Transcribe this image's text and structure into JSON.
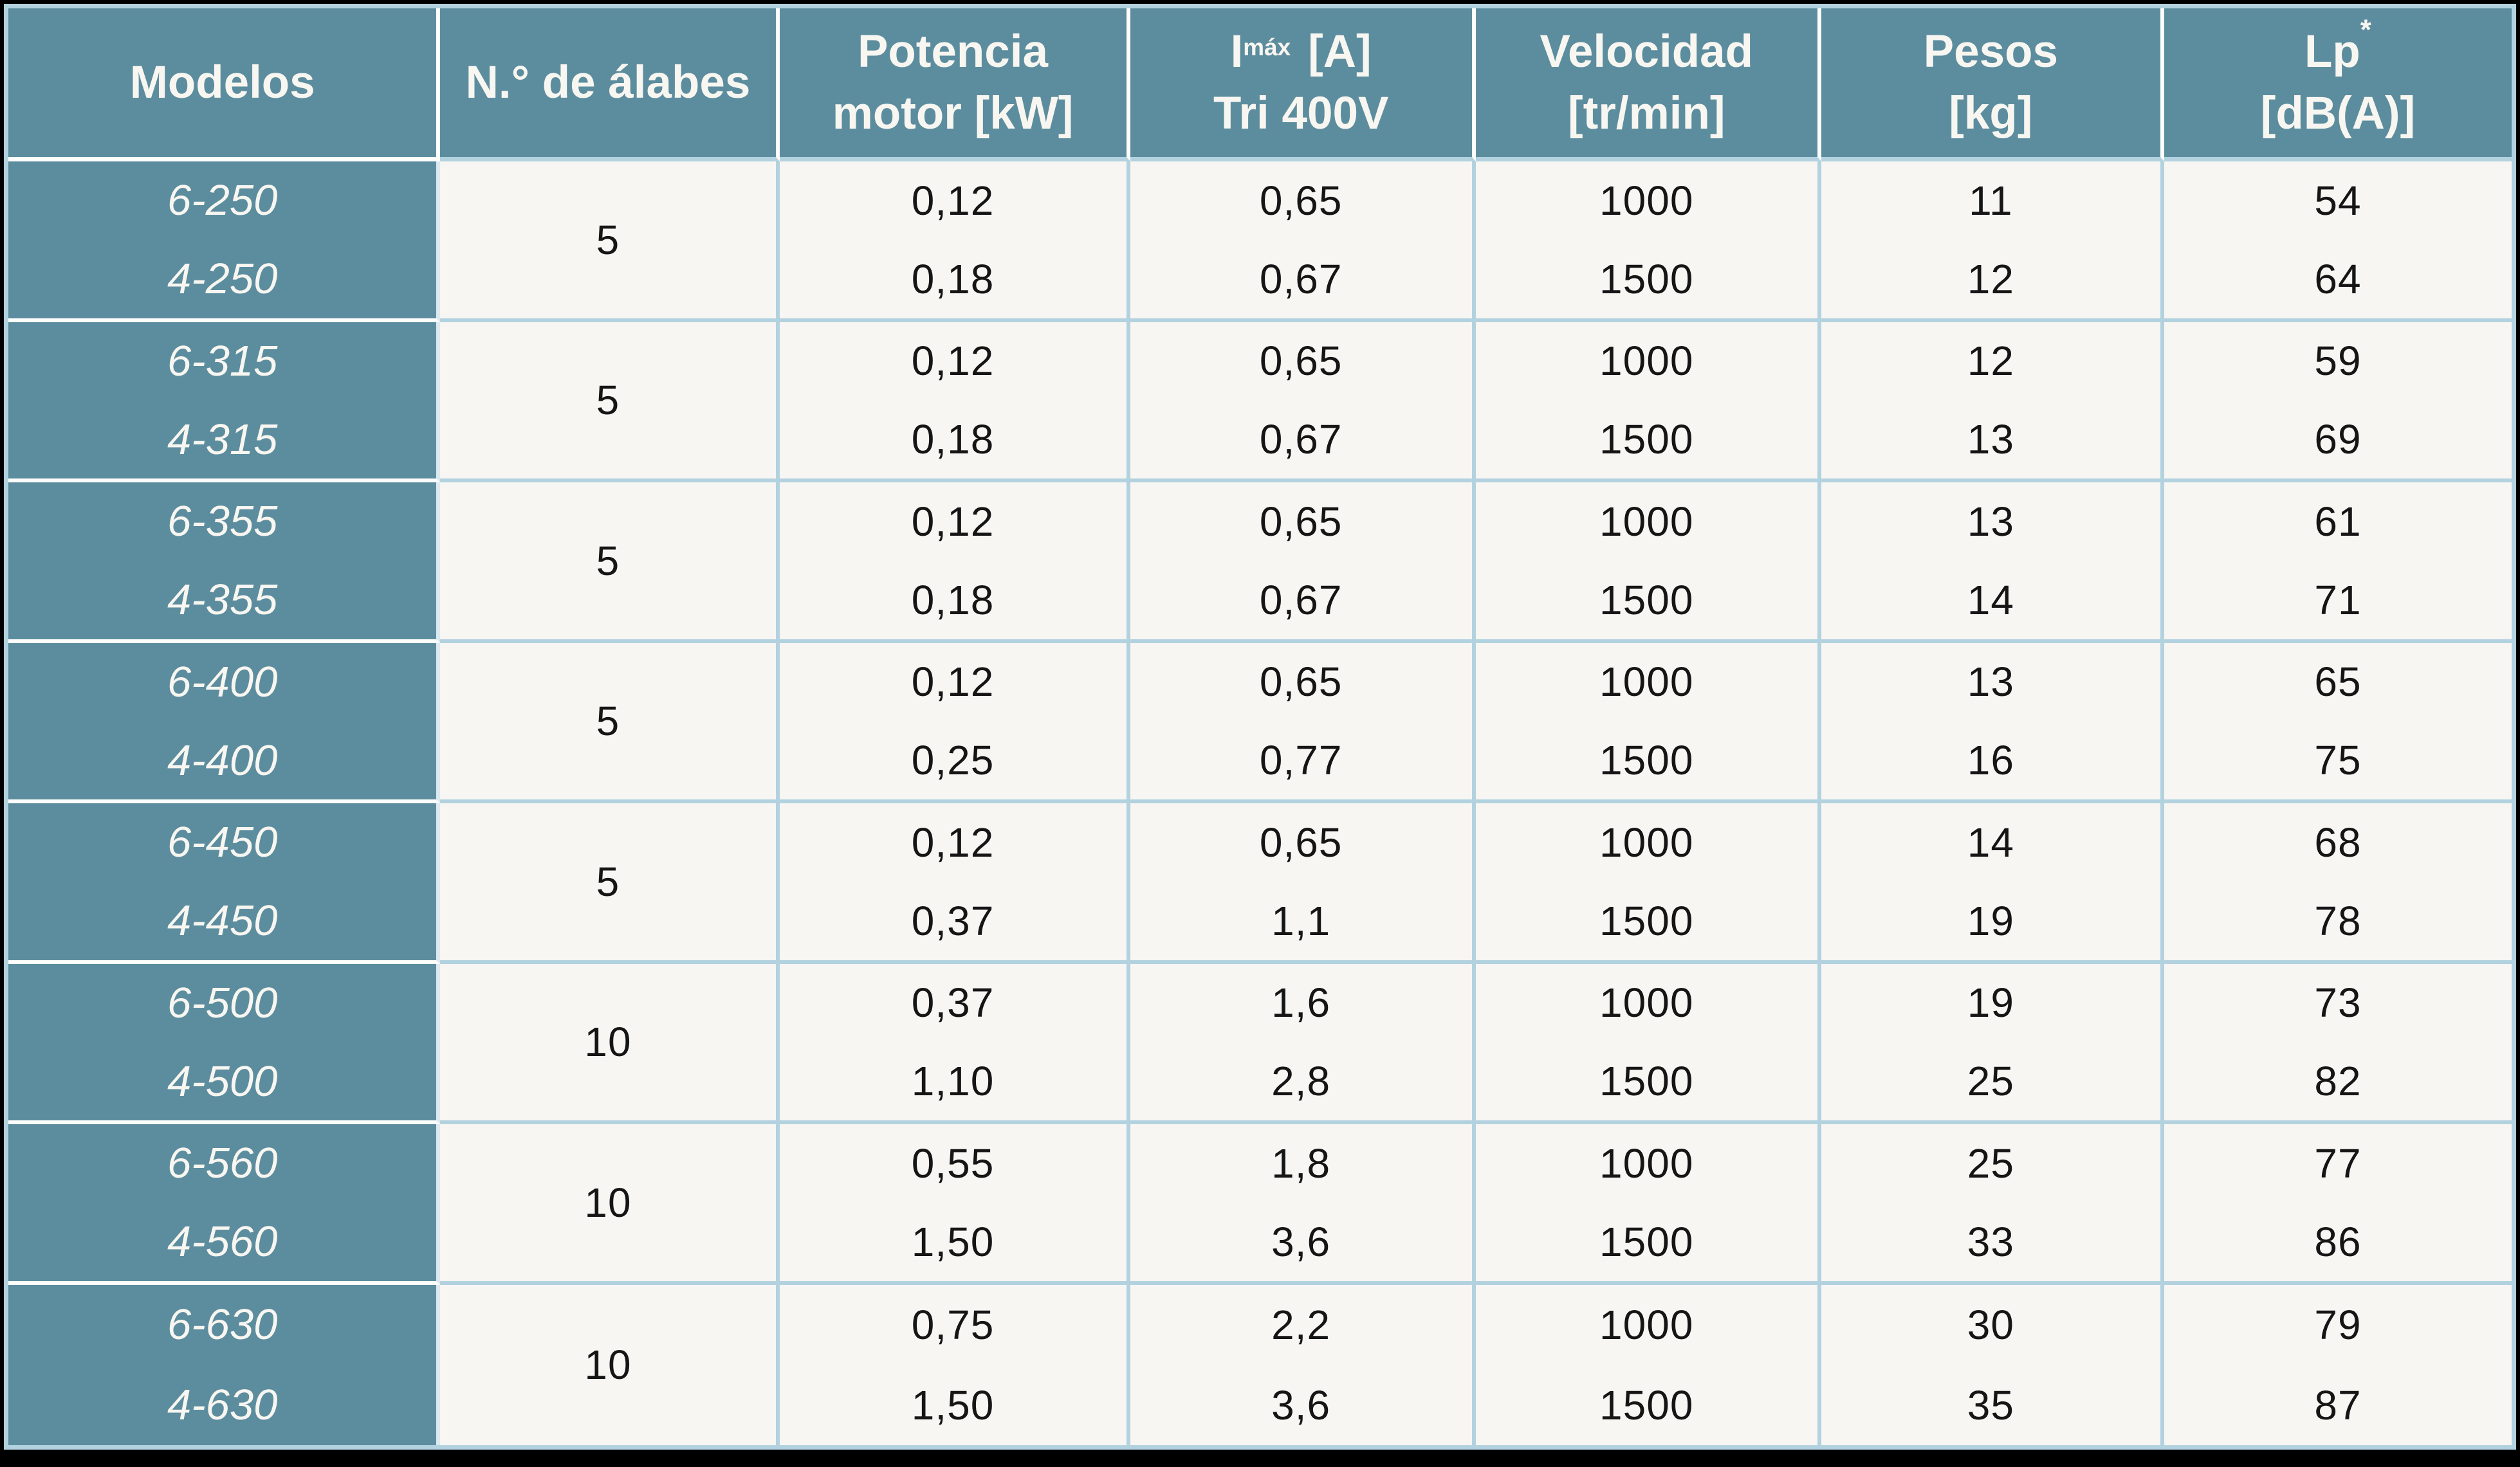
{
  "table": {
    "headers": {
      "modelos": "Modelos",
      "alabes": "N.° de álabes",
      "potencia_l1": "Potencia",
      "potencia_l2": "motor [kW]",
      "imax_base": "I",
      "imax_sub": "máx",
      "imax_unit": "[A]",
      "imax_l2": "Tri 400V",
      "velocidad_l1": "Velocidad",
      "velocidad_l2": "[tr/min]",
      "pesos_l1": "Pesos",
      "pesos_l2": "[kg]",
      "lp_base": "Lp",
      "lp_sup": "*",
      "lp_l2": "[dB(A)]"
    },
    "groups": [
      {
        "models": [
          "6-250",
          "4-250"
        ],
        "alabes": "5",
        "potencia": [
          "0,12",
          "0,18"
        ],
        "imax": [
          "0,65",
          "0,67"
        ],
        "velocidad": [
          "1000",
          "1500"
        ],
        "pesos": [
          "11",
          "12"
        ],
        "lp": [
          "54",
          "64"
        ]
      },
      {
        "models": [
          "6-315",
          "4-315"
        ],
        "alabes": "5",
        "potencia": [
          "0,12",
          "0,18"
        ],
        "imax": [
          "0,65",
          "0,67"
        ],
        "velocidad": [
          "1000",
          "1500"
        ],
        "pesos": [
          "12",
          "13"
        ],
        "lp": [
          "59",
          "69"
        ]
      },
      {
        "models": [
          "6-355",
          "4-355"
        ],
        "alabes": "5",
        "potencia": [
          "0,12",
          "0,18"
        ],
        "imax": [
          "0,65",
          "0,67"
        ],
        "velocidad": [
          "1000",
          "1500"
        ],
        "pesos": [
          "13",
          "14"
        ],
        "lp": [
          "61",
          "71"
        ]
      },
      {
        "models": [
          "6-400",
          "4-400"
        ],
        "alabes": "5",
        "potencia": [
          "0,12",
          "0,25"
        ],
        "imax": [
          "0,65",
          "0,77"
        ],
        "velocidad": [
          "1000",
          "1500"
        ],
        "pesos": [
          "13",
          "16"
        ],
        "lp": [
          "65",
          "75"
        ]
      },
      {
        "models": [
          "6-450",
          "4-450"
        ],
        "alabes": "5",
        "potencia": [
          "0,12",
          "0,37"
        ],
        "imax": [
          "0,65",
          "1,1"
        ],
        "velocidad": [
          "1000",
          "1500"
        ],
        "pesos": [
          "14",
          "19"
        ],
        "lp": [
          "68",
          "78"
        ]
      },
      {
        "models": [
          "6-500",
          "4-500"
        ],
        "alabes": "10",
        "potencia": [
          "0,37",
          "1,10"
        ],
        "imax": [
          "1,6",
          "2,8"
        ],
        "velocidad": [
          "1000",
          "1500"
        ],
        "pesos": [
          "19",
          "25"
        ],
        "lp": [
          "73",
          "82"
        ]
      },
      {
        "models": [
          "6-560",
          "4-560"
        ],
        "alabes": "10",
        "potencia": [
          "0,55",
          "1,50"
        ],
        "imax": [
          "1,8",
          "3,6"
        ],
        "velocidad": [
          "1000",
          "1500"
        ],
        "pesos": [
          "25",
          "33"
        ],
        "lp": [
          "77",
          "86"
        ]
      },
      {
        "models": [
          "6-630",
          "4-630"
        ],
        "alabes": "10",
        "potencia": [
          "0,75",
          "1,50"
        ],
        "imax": [
          "2,2",
          "3,6"
        ],
        "velocidad": [
          "1000",
          "1500"
        ],
        "pesos": [
          "30",
          "35"
        ],
        "lp": [
          "79",
          "87"
        ]
      }
    ]
  },
  "colors": {
    "header_teal": "#5C8D9E",
    "cell_bg": "#F7F6F3",
    "grid_blue": "#B3D2DF",
    "divider_white": "#FDFDFC",
    "header_text": "#F8F6F1",
    "data_text": "#151515",
    "frame_black": "#000000"
  }
}
